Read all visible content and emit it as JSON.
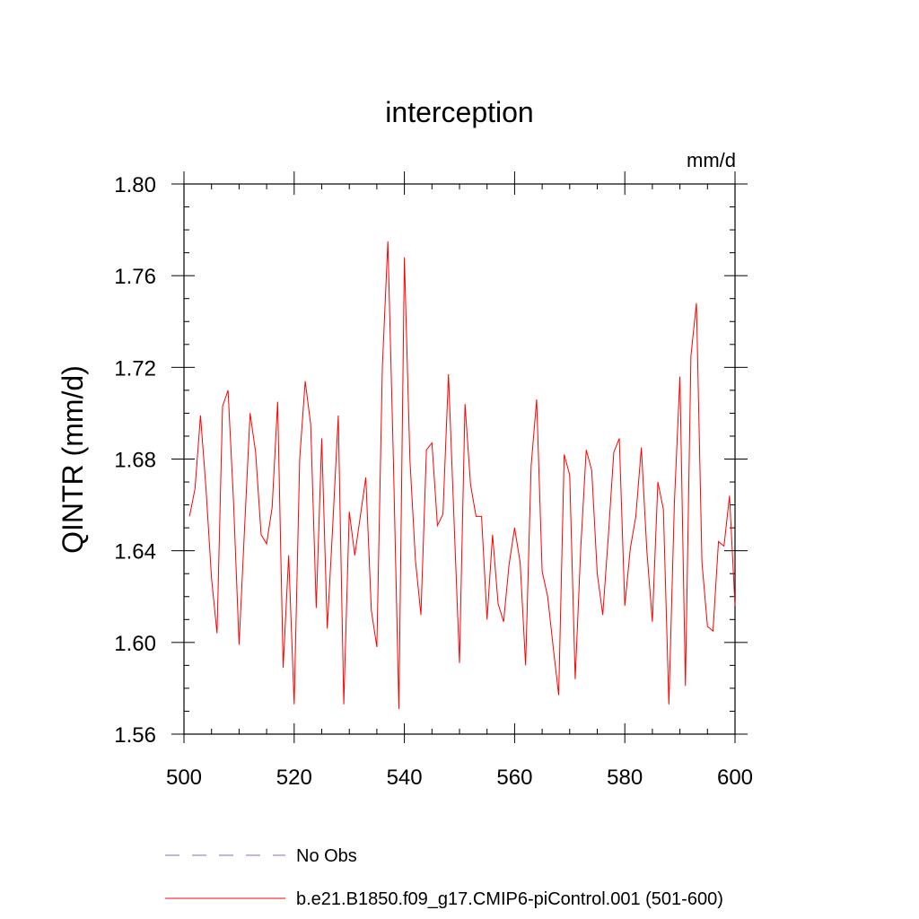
{
  "chart_data": {
    "type": "line",
    "title": "interception",
    "units_label": "mm/d",
    "xlabel": "",
    "ylabel": "QINTR  (mm/d)",
    "xlim": [
      500,
      600
    ],
    "ylim": [
      1.56,
      1.8
    ],
    "x_ticks": [
      500,
      520,
      540,
      560,
      580,
      600
    ],
    "x_tick_labels": [
      "500",
      "520",
      "540",
      "560",
      "580",
      "600"
    ],
    "y_ticks": [
      1.56,
      1.6,
      1.64,
      1.68,
      1.72,
      1.76,
      1.8
    ],
    "y_tick_labels": [
      "1.56",
      "1.60",
      "1.64",
      "1.68",
      "1.72",
      "1.76",
      "1.80"
    ],
    "legend": [
      {
        "label": "No Obs",
        "color": "#7b6fc4",
        "style": "dashed"
      },
      {
        "label": "b.e21.B1850.f09_g17.CMIP6-piControl.001 (501-600)",
        "color": "#ff0000",
        "style": "solid"
      }
    ],
    "series": [
      {
        "name": "b.e21.B1850.f09_g17.CMIP6-piControl.001 (501-600)",
        "color": "#ff0000",
        "x": [
          501,
          502,
          503,
          504,
          505,
          506,
          507,
          508,
          509,
          510,
          511,
          512,
          513,
          514,
          515,
          516,
          517,
          518,
          519,
          520,
          521,
          522,
          523,
          524,
          525,
          526,
          527,
          528,
          529,
          530,
          531,
          532,
          533,
          534,
          535,
          536,
          537,
          538,
          539,
          540,
          541,
          542,
          543,
          544,
          545,
          546,
          547,
          548,
          549,
          550,
          551,
          552,
          553,
          554,
          555,
          556,
          557,
          558,
          559,
          560,
          561,
          562,
          563,
          564,
          565,
          566,
          567,
          568,
          569,
          570,
          571,
          572,
          573,
          574,
          575,
          576,
          577,
          578,
          579,
          580,
          581,
          582,
          583,
          584,
          585,
          586,
          587,
          588,
          589,
          590,
          591,
          592,
          593,
          594,
          595,
          596,
          597,
          598,
          599,
          600
        ],
        "values": [
          1.655,
          1.667,
          1.699,
          1.667,
          1.628,
          1.604,
          1.703,
          1.71,
          1.661,
          1.599,
          1.65,
          1.7,
          1.683,
          1.647,
          1.643,
          1.659,
          1.705,
          1.589,
          1.638,
          1.573,
          1.68,
          1.714,
          1.695,
          1.615,
          1.689,
          1.606,
          1.651,
          1.699,
          1.573,
          1.657,
          1.638,
          1.655,
          1.672,
          1.614,
          1.598,
          1.72,
          1.775,
          1.68,
          1.571,
          1.768,
          1.68,
          1.636,
          1.612,
          1.684,
          1.687,
          1.651,
          1.656,
          1.717,
          1.654,
          1.591,
          1.704,
          1.669,
          1.655,
          1.655,
          1.61,
          1.647,
          1.617,
          1.609,
          1.634,
          1.65,
          1.635,
          1.59,
          1.677,
          1.706,
          1.631,
          1.62,
          1.598,
          1.577,
          1.682,
          1.673,
          1.584,
          1.641,
          1.684,
          1.675,
          1.63,
          1.612,
          1.646,
          1.683,
          1.689,
          1.616,
          1.641,
          1.655,
          1.685,
          1.64,
          1.609,
          1.67,
          1.658,
          1.573,
          1.661,
          1.716,
          1.581,
          1.725,
          1.748,
          1.635,
          1.607,
          1.605,
          1.644,
          1.642,
          1.664,
          1.616
        ]
      }
    ]
  }
}
